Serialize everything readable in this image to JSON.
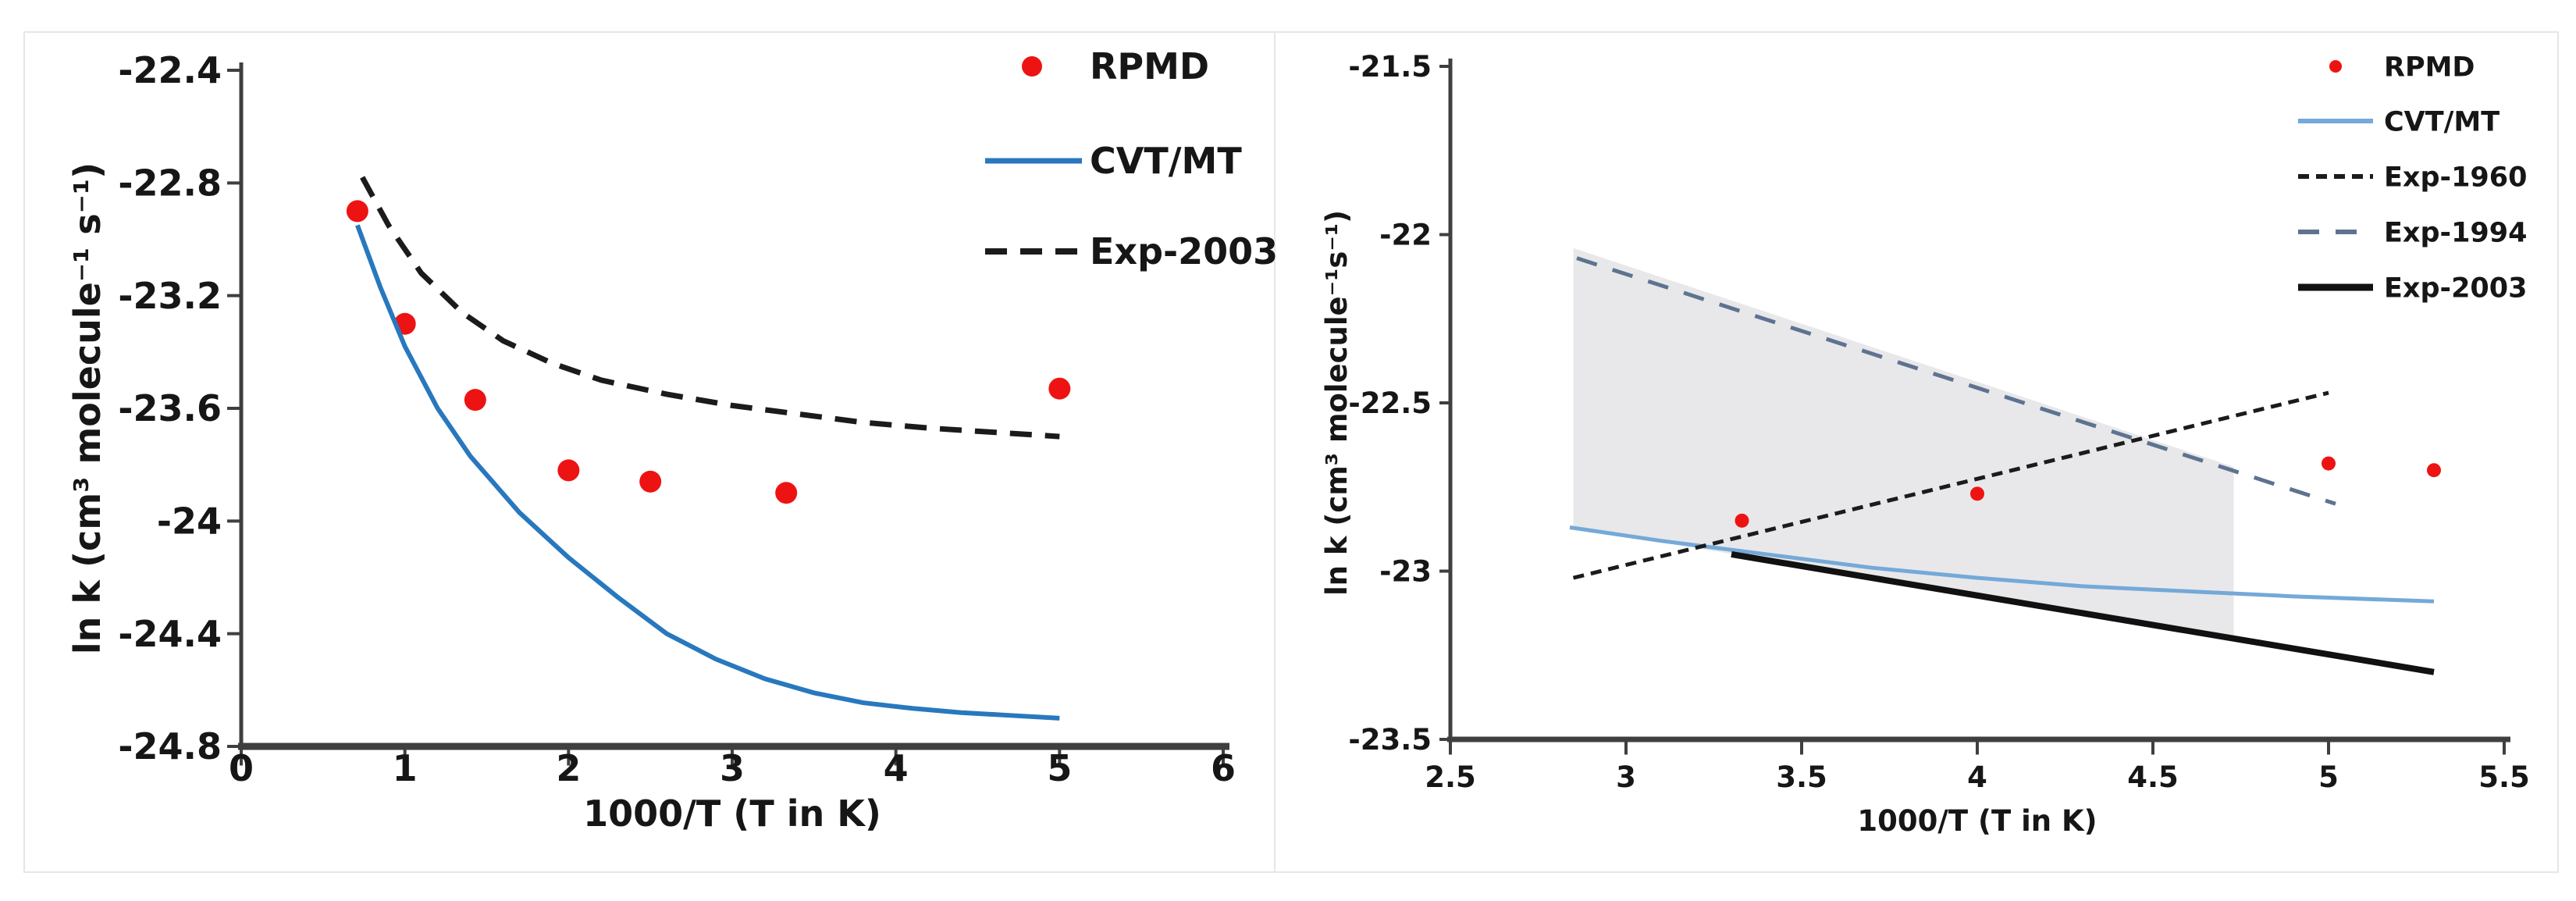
{
  "page": {
    "background": "#ffffff",
    "description": "Two Arrhenius plots comparing RPMD rate coefficients with theory and experiment"
  },
  "colors": {
    "rpmd_red": "#ee1313",
    "cvt_blue_left": "#2878be",
    "cvt_blue_right": "#74a9d8",
    "exp1960_black": "#1b1b1b",
    "exp1994_slate": "#5d7390",
    "exp2003_black": "#111111",
    "axis_gray": "#3f3f3f",
    "text_black": "#161616",
    "band_gray": "#e8e8ea"
  },
  "chart_data": [
    {
      "id": "left-panel",
      "type": "line",
      "title": "",
      "xlabel": "1000/T (T in K)",
      "ylabel": "ln k (cm³ molecule⁻¹ s⁻¹)",
      "xlim": [
        0,
        6
      ],
      "ylim": [
        -24.8,
        -22.4
      ],
      "grid": false,
      "legend_position": "upper right",
      "x_ticks": [
        {
          "v": 0,
          "label": "0"
        },
        {
          "v": 1,
          "label": "1"
        },
        {
          "v": 2,
          "label": "2"
        },
        {
          "v": 3,
          "label": "3"
        },
        {
          "v": 4,
          "label": "4"
        },
        {
          "v": 5,
          "label": "5"
        },
        {
          "v": 6,
          "label": "6"
        }
      ],
      "y_ticks": [
        {
          "v": -22.4,
          "label": "-22.4"
        },
        {
          "v": -22.8,
          "label": "-22.8"
        },
        {
          "v": -23.2,
          "label": "-23.2"
        },
        {
          "v": -23.6,
          "label": "-23.6"
        },
        {
          "v": -24,
          "label": "-24"
        },
        {
          "v": -24.4,
          "label": "-24.4"
        },
        {
          "v": -24.8,
          "label": "-24.8"
        }
      ],
      "series": [
        {
          "name": "RPMD",
          "type": "scatter",
          "color": "#ee1313",
          "points": [
            [
              0.71,
              -22.9
            ],
            [
              1.0,
              -23.3
            ],
            [
              1.43,
              -23.57
            ],
            [
              2.0,
              -23.82
            ],
            [
              2.5,
              -23.86
            ],
            [
              3.33,
              -23.9
            ],
            [
              5.0,
              -23.53
            ]
          ]
        },
        {
          "name": "CVT/MT",
          "type": "line",
          "color": "#2878be",
          "width": 6,
          "points": [
            [
              0.71,
              -22.95
            ],
            [
              0.85,
              -23.17
            ],
            [
              1.0,
              -23.38
            ],
            [
              1.2,
              -23.6
            ],
            [
              1.4,
              -23.77
            ],
            [
              1.7,
              -23.97
            ],
            [
              2.0,
              -24.13
            ],
            [
              2.3,
              -24.27
            ],
            [
              2.6,
              -24.4
            ],
            [
              2.9,
              -24.49
            ],
            [
              3.2,
              -24.56
            ],
            [
              3.5,
              -24.61
            ],
            [
              3.8,
              -24.645
            ],
            [
              4.1,
              -24.665
            ],
            [
              4.4,
              -24.68
            ],
            [
              4.7,
              -24.69
            ],
            [
              5.0,
              -24.7
            ]
          ]
        },
        {
          "name": "Exp-2003",
          "type": "line",
          "color": "#1b1b1b",
          "width": 7,
          "dash": "28 17",
          "points": [
            [
              0.74,
              -22.78
            ],
            [
              0.9,
              -22.95
            ],
            [
              1.1,
              -23.12
            ],
            [
              1.35,
              -23.26
            ],
            [
              1.6,
              -23.36
            ],
            [
              1.9,
              -23.44
            ],
            [
              2.2,
              -23.5
            ],
            [
              2.6,
              -23.55
            ],
            [
              3.0,
              -23.59
            ],
            [
              3.4,
              -23.62
            ],
            [
              3.8,
              -23.65
            ],
            [
              4.2,
              -23.67
            ],
            [
              4.6,
              -23.685
            ],
            [
              5.0,
              -23.7
            ]
          ]
        }
      ]
    },
    {
      "id": "right-panel",
      "type": "line",
      "title": "",
      "xlabel": "1000/T (T in K)",
      "ylabel": "ln k (cm³ molecule⁻¹s⁻¹)",
      "xlim": [
        2.5,
        5.5
      ],
      "ylim": [
        -23.5,
        -21.5
      ],
      "grid": false,
      "legend_position": "upper right",
      "band": {
        "color": "#e8e8ea",
        "points": [
          [
            2.85,
            -22.04
          ],
          [
            4.73,
            -22.69
          ],
          [
            4.73,
            -23.2
          ],
          [
            2.85,
            -22.87
          ]
        ]
      },
      "x_ticks": [
        {
          "v": 2.5,
          "label": "2.5"
        },
        {
          "v": 3,
          "label": "3"
        },
        {
          "v": 3.5,
          "label": "3.5"
        },
        {
          "v": 4,
          "label": "4"
        },
        {
          "v": 4.5,
          "label": "4.5"
        },
        {
          "v": 5,
          "label": "5"
        },
        {
          "v": 5.5,
          "label": "5.5"
        }
      ],
      "y_ticks": [
        {
          "v": -21.5,
          "label": "-21.5"
        },
        {
          "v": -22,
          "label": "-22"
        },
        {
          "v": -22.5,
          "label": "-22.5"
        },
        {
          "v": -23,
          "label": "-23"
        },
        {
          "v": -23.5,
          "label": "-23.5"
        }
      ],
      "series": [
        {
          "name": "RPMD",
          "type": "scatter",
          "color": "#ee1313",
          "points": [
            [
              3.33,
              -22.85
            ],
            [
              4.0,
              -22.77
            ],
            [
              5.0,
              -22.68
            ],
            [
              5.3,
              -22.7
            ]
          ]
        },
        {
          "name": "CVT/MT",
          "type": "line",
          "color": "#74a9d8",
          "width": 5,
          "points": [
            [
              2.84,
              -22.87
            ],
            [
              3.1,
              -22.91
            ],
            [
              3.4,
              -22.95
            ],
            [
              3.7,
              -22.99
            ],
            [
              4.0,
              -23.02
            ],
            [
              4.3,
              -23.045
            ],
            [
              4.6,
              -23.06
            ],
            [
              4.9,
              -23.075
            ],
            [
              5.3,
              -23.09
            ]
          ]
        },
        {
          "name": "Exp-1960",
          "type": "line",
          "color": "#1b1b1b",
          "width": 5,
          "dash": "14 9",
          "points": [
            [
              2.85,
              -23.02
            ],
            [
              5.0,
              -22.47
            ]
          ]
        },
        {
          "name": "Exp-1994",
          "type": "line",
          "color": "#5d7390",
          "width": 5,
          "dash": "27 21",
          "points": [
            [
              2.86,
              -22.07
            ],
            [
              5.02,
              -22.8
            ]
          ]
        },
        {
          "name": "Exp-2003",
          "type": "line",
          "color": "#111111",
          "width": 8,
          "points": [
            [
              3.3,
              -22.95
            ],
            [
              5.3,
              -23.3
            ]
          ]
        }
      ]
    }
  ]
}
